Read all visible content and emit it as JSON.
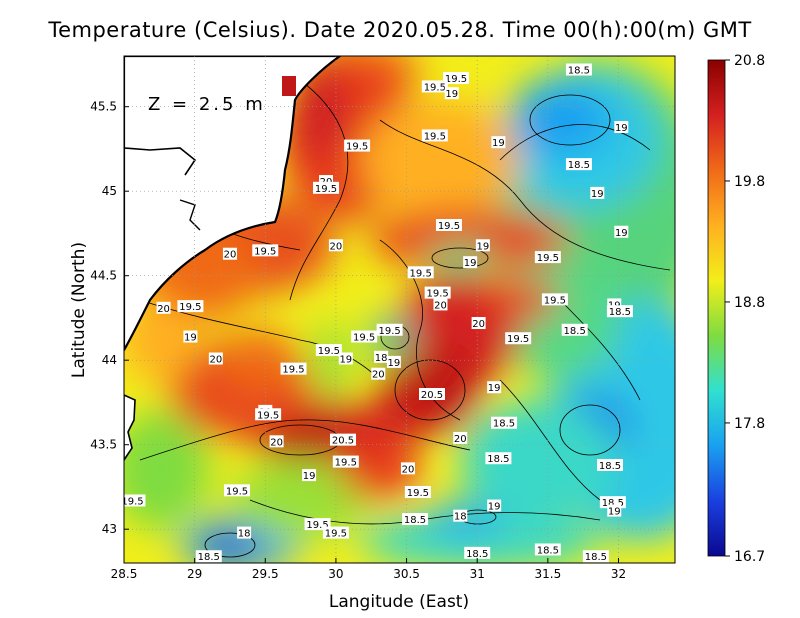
{
  "title": "Temperature (Celsius). Date 2020.05.28. Time 00(h):00(m) GMT",
  "depth_label": "Z = 2.5 m",
  "x_axis": {
    "label": "Langitude (East)",
    "range": [
      28.5,
      32.4
    ],
    "ticks": [
      "28.5",
      "29",
      "29.5",
      "30",
      "30.5",
      "31",
      "31.5",
      "32"
    ]
  },
  "y_axis": {
    "label": "Latitude (North)",
    "range": [
      42.8,
      45.8
    ],
    "ticks": [
      "43",
      "43.5",
      "44",
      "44.5",
      "45",
      "45.5"
    ]
  },
  "colorbar": {
    "min": 16.7,
    "max": 20.8,
    "labels": [
      "20.8",
      "19.8",
      "18.8",
      "17.8",
      "16.7"
    ],
    "colors": [
      "#8b0000",
      "#d42020",
      "#f06a18",
      "#ffb020",
      "#f2ee1a",
      "#7fdc40",
      "#30e0d0",
      "#1aa0f0",
      "#1a40e0",
      "#0a0890"
    ]
  },
  "colors": {
    "land": "#ffffff",
    "coast": "#000000",
    "grid": "#999999"
  },
  "contour_labels": [
    {
      "text": "19.5",
      "lon": 30.85,
      "lat": 45.67
    },
    {
      "text": "18.5",
      "lon": 31.72,
      "lat": 45.72
    },
    {
      "text": "19.5",
      "lon": 30.7,
      "lat": 45.62
    },
    {
      "text": "19",
      "lon": 30.82,
      "lat": 45.58
    },
    {
      "text": "19.5",
      "lon": 30.7,
      "lat": 45.33
    },
    {
      "text": "19.5",
      "lon": 30.15,
      "lat": 45.27
    },
    {
      "text": "19",
      "lon": 31.15,
      "lat": 45.29
    },
    {
      "text": "19",
      "lon": 32.02,
      "lat": 45.38
    },
    {
      "text": "18.5",
      "lon": 31.72,
      "lat": 45.16
    },
    {
      "text": "20",
      "lon": 29.93,
      "lat": 45.06
    },
    {
      "text": "19.5",
      "lon": 29.93,
      "lat": 45.02
    },
    {
      "text": "19",
      "lon": 31.85,
      "lat": 44.99
    },
    {
      "text": "19.5",
      "lon": 30.8,
      "lat": 44.8
    },
    {
      "text": "19",
      "lon": 32.02,
      "lat": 44.76
    },
    {
      "text": "20",
      "lon": 29.25,
      "lat": 44.63
    },
    {
      "text": "19.5",
      "lon": 29.5,
      "lat": 44.65
    },
    {
      "text": "20",
      "lon": 30,
      "lat": 44.68
    },
    {
      "text": "19",
      "lon": 31.04,
      "lat": 44.68
    },
    {
      "text": "19.5",
      "lon": 31.5,
      "lat": 44.61
    },
    {
      "text": "19",
      "lon": 30.95,
      "lat": 44.58
    },
    {
      "text": "19.5",
      "lon": 30.6,
      "lat": 44.52
    },
    {
      "text": "19.5",
      "lon": 30.72,
      "lat": 44.4
    },
    {
      "text": "20",
      "lon": 30.74,
      "lat": 44.33
    },
    {
      "text": "19.5",
      "lon": 31.55,
      "lat": 44.36
    },
    {
      "text": "19",
      "lon": 31.97,
      "lat": 44.33
    },
    {
      "text": "18.5",
      "lon": 32.01,
      "lat": 44.29
    },
    {
      "text": "20",
      "lon": 28.78,
      "lat": 44.31
    },
    {
      "text": "19.5",
      "lon": 28.97,
      "lat": 44.32
    },
    {
      "text": "20",
      "lon": 31.01,
      "lat": 44.22
    },
    {
      "text": "18.5",
      "lon": 31.69,
      "lat": 44.18
    },
    {
      "text": "19",
      "lon": 28.97,
      "lat": 44.14
    },
    {
      "text": "19.5",
      "lon": 30.38,
      "lat": 44.18
    },
    {
      "text": "19.5",
      "lon": 30.2,
      "lat": 44.14
    },
    {
      "text": "19.5",
      "lon": 31.29,
      "lat": 44.13
    },
    {
      "text": "19.5",
      "lon": 29.95,
      "lat": 44.06
    },
    {
      "text": "18",
      "lon": 30.32,
      "lat": 44.02
    },
    {
      "text": "19",
      "lon": 30.41,
      "lat": 43.99
    },
    {
      "text": "20",
      "lon": 29.15,
      "lat": 44.01
    },
    {
      "text": "19",
      "lon": 30.07,
      "lat": 44.01
    },
    {
      "text": "19.5",
      "lon": 29.7,
      "lat": 43.95
    },
    {
      "text": "20",
      "lon": 30.3,
      "lat": 43.92
    },
    {
      "text": "20.5",
      "lon": 30.68,
      "lat": 43.8
    },
    {
      "text": "19",
      "lon": 31.12,
      "lat": 43.84
    },
    {
      "text": "20",
      "lon": 29.5,
      "lat": 43.7
    },
    {
      "text": "19.5",
      "lon": 29.52,
      "lat": 43.68
    },
    {
      "text": "18.5",
      "lon": 31.19,
      "lat": 43.63
    },
    {
      "text": "20",
      "lon": 29.58,
      "lat": 43.52
    },
    {
      "text": "20.5",
      "lon": 30.05,
      "lat": 43.53
    },
    {
      "text": "20",
      "lon": 30.88,
      "lat": 43.54
    },
    {
      "text": "18.5",
      "lon": 31.15,
      "lat": 43.42
    },
    {
      "text": "18.5",
      "lon": 31.94,
      "lat": 43.38
    },
    {
      "text": "19.5",
      "lon": 30.07,
      "lat": 43.4
    },
    {
      "text": "20",
      "lon": 30.51,
      "lat": 43.36
    },
    {
      "text": "19",
      "lon": 29.81,
      "lat": 43.32
    },
    {
      "text": "19.5",
      "lon": 29.3,
      "lat": 43.23
    },
    {
      "text": "19.5",
      "lon": 30.58,
      "lat": 43.22
    },
    {
      "text": "19.5",
      "lon": 28.56,
      "lat": 43.17
    },
    {
      "text": "19",
      "lon": 31.12,
      "lat": 43.14
    },
    {
      "text": "18.5",
      "lon": 31.96,
      "lat": 43.16
    },
    {
      "text": "19",
      "lon": 31.97,
      "lat": 43.11
    },
    {
      "text": "18",
      "lon": 29.35,
      "lat": 42.98
    },
    {
      "text": "18.5",
      "lon": 30.56,
      "lat": 43.06
    },
    {
      "text": "18",
      "lon": 30.88,
      "lat": 43.08
    },
    {
      "text": "19.5",
      "lon": 29.87,
      "lat": 43.03
    },
    {
      "text": "19.5",
      "lon": 30.0,
      "lat": 42.98
    },
    {
      "text": "18.5",
      "lon": 31.0,
      "lat": 42.86
    },
    {
      "text": "18.5",
      "lon": 31.5,
      "lat": 42.88
    },
    {
      "text": "18.5",
      "lon": 31.84,
      "lat": 42.84
    },
    {
      "text": "18.5",
      "lon": 29.1,
      "lat": 42.84
    }
  ]
}
